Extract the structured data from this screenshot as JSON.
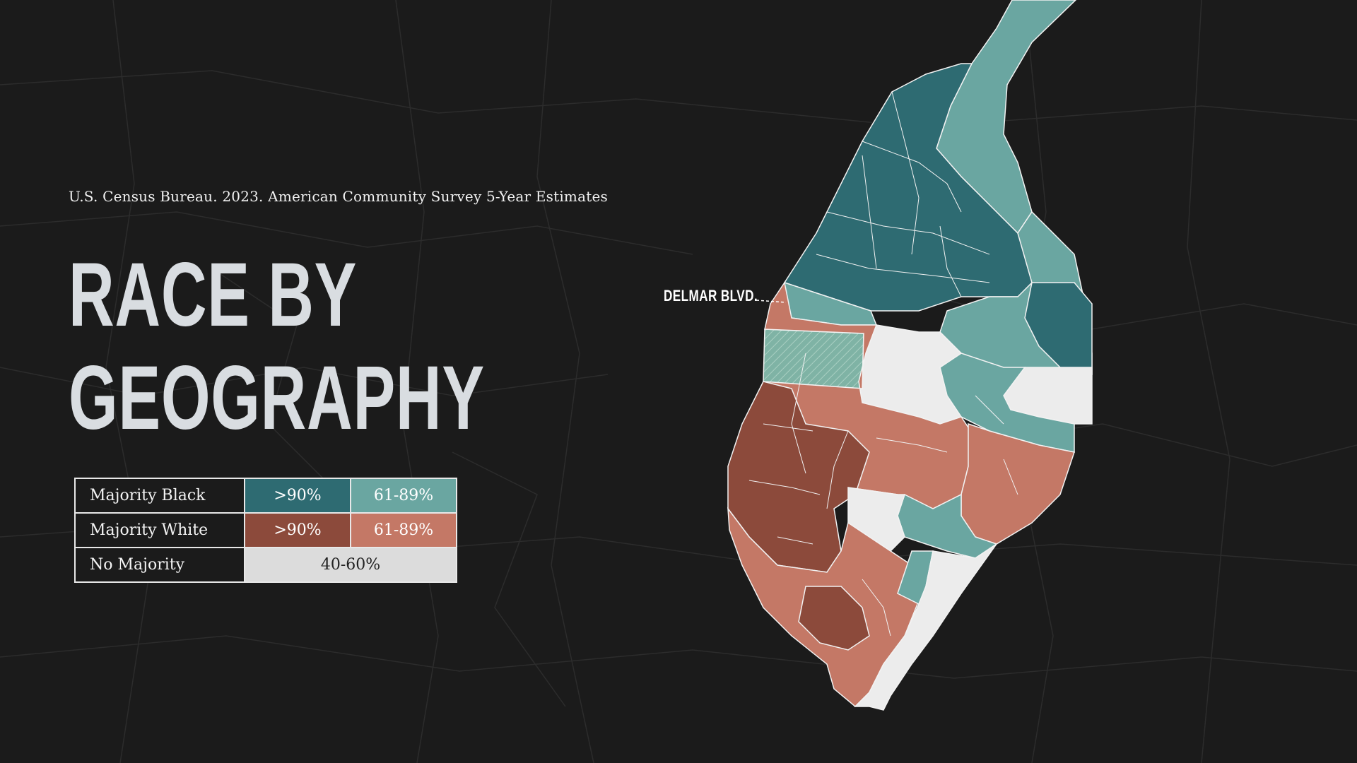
{
  "source": "U.S. Census Bureau. 2023. American Community Survey 5-Year Estimates",
  "title_line1": "RACE BY",
  "title_line2": "GEOGRAPHY",
  "legend": {
    "majority_black": {
      "label": "Majority Black",
      "high": ">90%",
      "mid": "61-89%"
    },
    "majority_white": {
      "label": "Majority White",
      "high": ">90%",
      "mid": "61-89%"
    },
    "no_majority": {
      "label": "No Majority",
      "range": "40-60%"
    }
  },
  "map_label": "DELMAR BLVD.",
  "colors": {
    "background": "#1b1b1b",
    "black_high": "#2e6b72",
    "black_mid": "#6aa6a1",
    "white_high": "#8c4a3b",
    "white_mid": "#c47866",
    "no_majority": "#ececec"
  }
}
